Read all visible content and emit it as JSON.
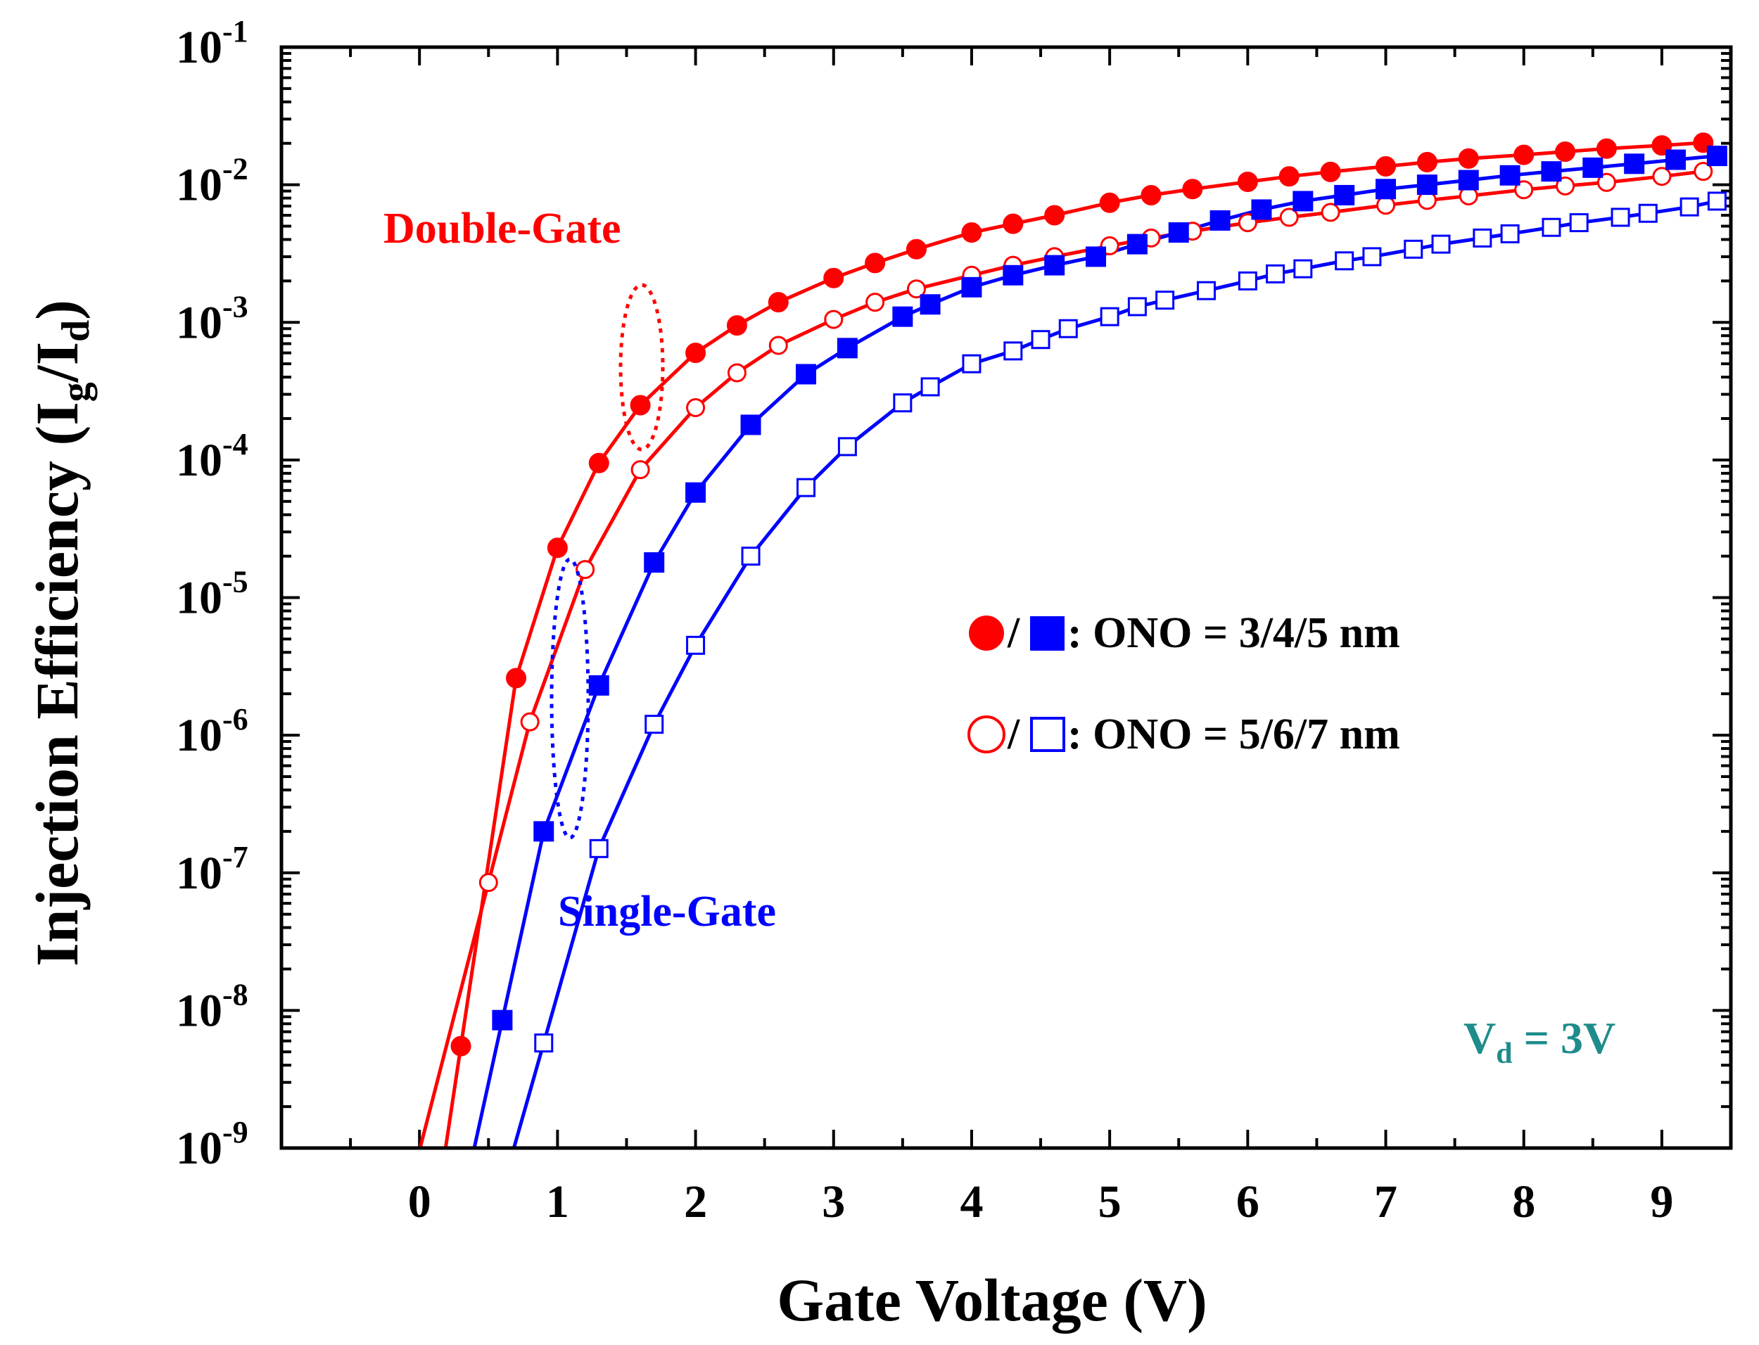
{
  "chart_data": {
    "type": "line",
    "title": "",
    "xlabel": "Gate Voltage (V)",
    "ylabel": "Injection Efficiency (I",
    "ylabel_sub1": "g",
    "ylabel_mid": "/I",
    "ylabel_sub2": "d",
    "ylabel_end": ")",
    "xlim": [
      -1,
      9.5
    ],
    "ylim_log10": [
      -9,
      -1
    ],
    "yscale": "log",
    "x_ticks": [
      0,
      1,
      2,
      3,
      4,
      5,
      6,
      7,
      8,
      9
    ],
    "y_ticks": [
      {
        "base": "10",
        "exp": "-9",
        "value": -9
      },
      {
        "base": "10",
        "exp": "-8",
        "value": -8
      },
      {
        "base": "10",
        "exp": "-7",
        "value": -7
      },
      {
        "base": "10",
        "exp": "-6",
        "value": -6
      },
      {
        "base": "10",
        "exp": "-5",
        "value": -5
      },
      {
        "base": "10",
        "exp": "-4",
        "value": -4
      },
      {
        "base": "10",
        "exp": "-3",
        "value": -3
      },
      {
        "base": "10",
        "exp": "-2",
        "value": -2
      },
      {
        "base": "10",
        "exp": "-1",
        "value": -1
      }
    ],
    "series": [
      {
        "name": "Double-Gate ONO = 3/4/5 nm",
        "color": "#ff0000",
        "marker": "circle",
        "filled": true,
        "x": [
          0.3,
          0.7,
          1.0,
          1.3,
          1.6,
          2.0,
          2.3,
          2.6,
          3.0,
          3.3,
          3.6,
          4.0,
          4.3,
          4.6,
          5.0,
          5.3,
          5.6,
          6.0,
          6.3,
          6.6,
          7.0,
          7.3,
          7.6,
          8.0,
          8.3,
          8.6,
          9.0,
          9.3
        ],
        "y": [
          5.5e-09,
          2.6e-06,
          2.3e-05,
          9.5e-05,
          0.00025,
          0.0006,
          0.00095,
          0.0014,
          0.0021,
          0.0027,
          0.0034,
          0.0045,
          0.0052,
          0.006,
          0.0074,
          0.0084,
          0.0093,
          0.0105,
          0.0115,
          0.0124,
          0.0136,
          0.0146,
          0.0155,
          0.0165,
          0.0174,
          0.0183,
          0.0193,
          0.0202
        ]
      },
      {
        "name": "Double-Gate ONO = 5/6/7 nm",
        "color": "#ff0000",
        "marker": "circle",
        "filled": false,
        "x": [
          0.5,
          0.8,
          1.2,
          1.6,
          2.0,
          2.3,
          2.6,
          3.0,
          3.3,
          3.6,
          4.0,
          4.3,
          4.6,
          5.0,
          5.3,
          5.6,
          6.0,
          6.3,
          6.6,
          7.0,
          7.3,
          7.6,
          8.0,
          8.3,
          8.6,
          9.0,
          9.3
        ],
        "y": [
          8.5e-08,
          1.25e-06,
          1.6e-05,
          8.5e-05,
          0.00024,
          0.00043,
          0.00068,
          0.00105,
          0.0014,
          0.00175,
          0.0022,
          0.0026,
          0.003,
          0.0036,
          0.0041,
          0.0046,
          0.0053,
          0.0058,
          0.0063,
          0.0071,
          0.0077,
          0.0083,
          0.0092,
          0.0098,
          0.0104,
          0.0115,
          0.0125
        ]
      },
      {
        "name": "Single-Gate ONO = 3/4/5 nm",
        "color": "#0000ff",
        "marker": "square",
        "filled": true,
        "x": [
          0.6,
          0.9,
          1.3,
          1.7,
          2.0,
          2.4,
          2.8,
          3.1,
          3.5,
          3.7,
          4.0,
          4.3,
          4.6,
          4.9,
          5.2,
          5.5,
          5.8,
          6.1,
          6.4,
          6.7,
          7.0,
          7.3,
          7.6,
          7.9,
          8.2,
          8.5,
          8.8,
          9.1,
          9.4
        ],
        "y": [
          8.5e-09,
          2e-07,
          2.3e-06,
          1.8e-05,
          5.8e-05,
          0.00018,
          0.00042,
          0.00065,
          0.0011,
          0.00135,
          0.0018,
          0.0022,
          0.0026,
          0.003,
          0.0037,
          0.0045,
          0.0055,
          0.0066,
          0.0076,
          0.0084,
          0.0093,
          0.01,
          0.0108,
          0.0117,
          0.0125,
          0.0133,
          0.0142,
          0.0152,
          0.0162
        ]
      },
      {
        "name": "Single-Gate ONO = 5/6/7 nm",
        "color": "#0000ff",
        "marker": "square",
        "filled": false,
        "x": [
          0.9,
          1.3,
          1.7,
          2.0,
          2.4,
          2.8,
          3.1,
          3.5,
          3.7,
          4.0,
          4.3,
          4.5,
          4.7,
          5.0,
          5.2,
          5.4,
          5.7,
          6.0,
          6.2,
          6.4,
          6.7,
          6.9,
          7.2,
          7.4,
          7.7,
          7.9,
          8.2,
          8.4,
          8.7,
          8.9,
          9.2,
          9.4
        ],
        "y": [
          5.8e-09,
          1.5e-07,
          1.2e-06,
          4.5e-06,
          2e-05,
          6.3e-05,
          0.000125,
          0.00026,
          0.00034,
          0.0005,
          0.00062,
          0.00075,
          0.0009,
          0.0011,
          0.0013,
          0.00145,
          0.0017,
          0.002,
          0.00225,
          0.00245,
          0.0028,
          0.003,
          0.0034,
          0.0037,
          0.0041,
          0.0044,
          0.0049,
          0.0053,
          0.0058,
          0.0062,
          0.0069,
          0.0076
        ]
      }
    ],
    "annotations": {
      "double_gate": "Double-Gate",
      "single_gate": "Single-Gate",
      "vd_prefix": "V",
      "vd_sub": "d",
      "vd_value": " = 3V",
      "legend1_sep": "/",
      "legend1_text": ": ONO = 3/4/5 nm",
      "legend2_sep": "/",
      "legend2_text": ": ONO = 5/6/7 nm"
    },
    "colors": {
      "red": "#ff0000",
      "blue": "#0000ff",
      "teal": "#1e8c8c",
      "axis": "#000000"
    }
  }
}
